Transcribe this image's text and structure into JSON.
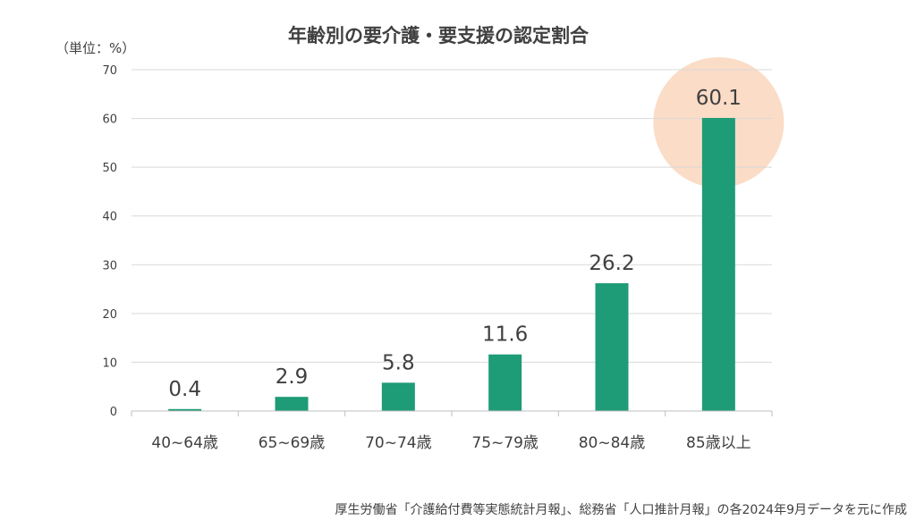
{
  "chart_data": {
    "type": "bar",
    "title": "年齢別の要介護・要支援の認定割合",
    "unit_label": "（単位：%）",
    "categories": [
      "40~64歳",
      "65~69歳",
      "70~74歳",
      "75~79歳",
      "80~84歳",
      "85歳以上"
    ],
    "values": [
      0.4,
      2.9,
      5.8,
      11.6,
      26.2,
      60.1
    ],
    "value_labels": [
      "0.4",
      "2.9",
      "5.8",
      "11.6",
      "26.2",
      "60.1"
    ],
    "ylim": [
      0,
      70
    ],
    "yticks": [
      0,
      10,
      20,
      30,
      40,
      50,
      60,
      70
    ],
    "grid": true,
    "bar_color": "#1e9b77",
    "highlight_index": 5,
    "highlight_color": "#fbdcc7",
    "source": "厚生労働省「介護給付費等実態統計月報」、総務省「人口推計月報」の各2024年9月データを元に作成"
  }
}
